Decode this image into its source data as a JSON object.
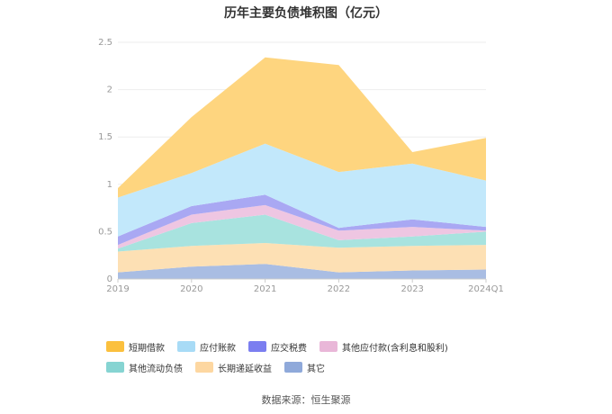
{
  "chart_data": {
    "type": "area",
    "stacked": true,
    "title": "历年主要负债堆积图（亿元）",
    "categories": [
      "2019",
      "2020",
      "2021",
      "2022",
      "2023",
      "2024Q1"
    ],
    "ylim": [
      0,
      2.5
    ],
    "yticks": [
      "0",
      "0.5",
      "1",
      "1.5",
      "2",
      "2.5"
    ],
    "grid": true,
    "legend_position": "bottom",
    "series": [
      {
        "name": "其它",
        "color": "#a9bde3",
        "values": [
          0.07,
          0.13,
          0.16,
          0.07,
          0.09,
          0.1
        ]
      },
      {
        "name": "长期递延收益",
        "color": "#fde0b4",
        "values": [
          0.22,
          0.22,
          0.22,
          0.26,
          0.26,
          0.26
        ]
      },
      {
        "name": "其他流动负债",
        "color": "#a8e3df",
        "values": [
          0.03,
          0.24,
          0.3,
          0.08,
          0.1,
          0.14
        ]
      },
      {
        "name": "其他应付款(含利息和股利)",
        "color": "#eec6e2",
        "values": [
          0.04,
          0.09,
          0.1,
          0.1,
          0.1,
          0.01
        ]
      },
      {
        "name": "应交税费",
        "color": "#a9a8f3",
        "values": [
          0.09,
          0.09,
          0.11,
          0.03,
          0.08,
          0.04
        ]
      },
      {
        "name": "应付账款",
        "color": "#c2e8fb",
        "values": [
          0.41,
          0.35,
          0.54,
          0.59,
          0.59,
          0.49
        ]
      },
      {
        "name": "短期借款",
        "color": "#fed57f",
        "values": [
          0.1,
          0.59,
          0.91,
          1.13,
          0.12,
          0.45
        ]
      }
    ],
    "legend": [
      {
        "name": "短期借款",
        "color": "#fbc03e"
      },
      {
        "name": "应付账款",
        "color": "#a8dbf6"
      },
      {
        "name": "应交税费",
        "color": "#7b7ef0"
      },
      {
        "name": "其他应付款(含利息和股利)",
        "color": "#e9b7d8"
      },
      {
        "name": "其他流动负债",
        "color": "#86d4d2"
      },
      {
        "name": "长期递延收益",
        "color": "#fdd7a1"
      },
      {
        "name": "其它",
        "color": "#8fa9da"
      }
    ]
  },
  "source_text": "数据来源：恒生聚源"
}
